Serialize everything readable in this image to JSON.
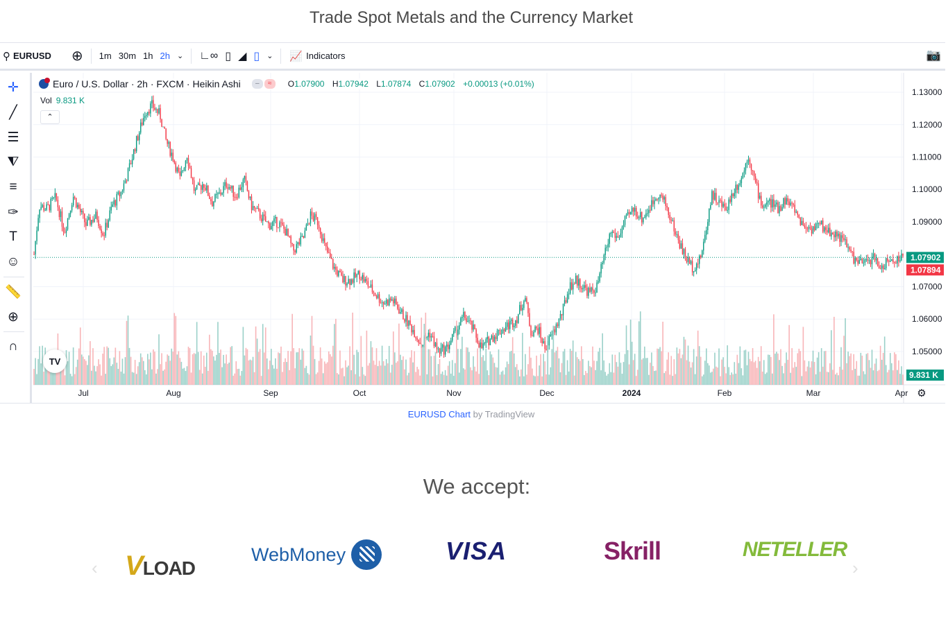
{
  "page": {
    "title": "Trade Spot Metals and the Currency Market"
  },
  "toolbar": {
    "symbol": "EURUSD",
    "intervals": [
      "1m",
      "30m",
      "1h",
      "2h"
    ],
    "active_interval": "2h",
    "indicators_label": "Indicators"
  },
  "legend": {
    "title": "Euro / U.S. Dollar · 2h · FXCM · Heikin Ashi",
    "o_key": "O",
    "o_val": "1.07900",
    "h_key": "H",
    "h_val": "1.07942",
    "l_key": "L",
    "l_val": "1.07874",
    "c_key": "C",
    "c_val": "1.07902",
    "change": "+0.00013 (+0.01%)",
    "vol_label": "Vol",
    "vol_val": "9.831 K"
  },
  "tv_logo_text": "TV",
  "attribution": {
    "link": "EURUSD Chart",
    "suffix": " by TradingView"
  },
  "accept": {
    "title": "We accept:"
  },
  "payment_logos": [
    "LOAD",
    "WebMoney",
    "VISA",
    "Skrill",
    "NETELLER"
  ],
  "colors": {
    "up": "#089981",
    "down": "#f23645",
    "accent": "#2962ff",
    "vol_up": "#89c9bf",
    "vol_down": "#f7a8ab"
  },
  "chart_data": {
    "type": "candlestick",
    "y_ticks": [
      "1.13000",
      "1.12000",
      "1.11000",
      "1.10000",
      "1.09000",
      "1.07000",
      "1.06000",
      "1.05000"
    ],
    "ylim": [
      1.044,
      1.133
    ],
    "x_ticks": [
      "Jul",
      "Aug",
      "Sep",
      "Oct",
      "Nov",
      "Dec",
      "2024",
      "Feb",
      "Mar",
      "Apr"
    ],
    "last_price": "1.07902",
    "prev_price": "1.07894",
    "volume_label": "9.831 K",
    "price_path": [
      [
        0.0,
        1.08
      ],
      [
        0.006,
        1.095
      ],
      [
        0.015,
        1.094
      ],
      [
        0.025,
        1.0975
      ],
      [
        0.035,
        1.087
      ],
      [
        0.045,
        1.098
      ],
      [
        0.06,
        1.089
      ],
      [
        0.072,
        1.092
      ],
      [
        0.08,
        1.086
      ],
      [
        0.09,
        1.095
      ],
      [
        0.1,
        1.099
      ],
      [
        0.108,
        1.105
      ],
      [
        0.118,
        1.115
      ],
      [
        0.128,
        1.124
      ],
      [
        0.136,
        1.126
      ],
      [
        0.145,
        1.123
      ],
      [
        0.152,
        1.115
      ],
      [
        0.16,
        1.11
      ],
      [
        0.168,
        1.103
      ],
      [
        0.176,
        1.111
      ],
      [
        0.185,
        1.099
      ],
      [
        0.195,
        1.102
      ],
      [
        0.205,
        1.096
      ],
      [
        0.215,
        1.099
      ],
      [
        0.222,
        1.102
      ],
      [
        0.232,
        1.098
      ],
      [
        0.242,
        1.103
      ],
      [
        0.25,
        1.095
      ],
      [
        0.26,
        1.092
      ],
      [
        0.27,
        1.089
      ],
      [
        0.28,
        1.09
      ],
      [
        0.29,
        1.087
      ],
      [
        0.298,
        1.081
      ],
      [
        0.31,
        1.085
      ],
      [
        0.318,
        1.092
      ],
      [
        0.327,
        1.09
      ],
      [
        0.335,
        1.082
      ],
      [
        0.345,
        1.076
      ],
      [
        0.355,
        1.072
      ],
      [
        0.365,
        1.072
      ],
      [
        0.375,
        1.074
      ],
      [
        0.383,
        1.071
      ],
      [
        0.392,
        1.068
      ],
      [
        0.402,
        1.065
      ],
      [
        0.412,
        1.066
      ],
      [
        0.42,
        1.063
      ],
      [
        0.43,
        1.059
      ],
      [
        0.438,
        1.056
      ],
      [
        0.446,
        1.052
      ],
      [
        0.455,
        1.056
      ],
      [
        0.465,
        1.05
      ],
      [
        0.475,
        1.051
      ],
      [
        0.485,
        1.056
      ],
      [
        0.495,
        1.061
      ],
      [
        0.505,
        1.057
      ],
      [
        0.515,
        1.051
      ],
      [
        0.525,
        1.054
      ],
      [
        0.535,
        1.056
      ],
      [
        0.545,
        1.058
      ],
      [
        0.555,
        1.06
      ],
      [
        0.565,
        1.067
      ],
      [
        0.572,
        1.056
      ],
      [
        0.58,
        1.057
      ],
      [
        0.588,
        1.051
      ],
      [
        0.598,
        1.056
      ],
      [
        0.608,
        1.062
      ],
      [
        0.616,
        1.07
      ],
      [
        0.624,
        1.072
      ],
      [
        0.632,
        1.07
      ],
      [
        0.64,
        1.068
      ],
      [
        0.648,
        1.07
      ],
      [
        0.656,
        1.079
      ],
      [
        0.664,
        1.087
      ],
      [
        0.672,
        1.085
      ],
      [
        0.68,
        1.09
      ],
      [
        0.69,
        1.094
      ],
      [
        0.7,
        1.091
      ],
      [
        0.71,
        1.095
      ],
      [
        0.718,
        1.099
      ],
      [
        0.726,
        1.096
      ],
      [
        0.734,
        1.09
      ],
      [
        0.742,
        1.084
      ],
      [
        0.75,
        1.079
      ],
      [
        0.758,
        1.076
      ],
      [
        0.766,
        1.078
      ],
      [
        0.772,
        1.085
      ],
      [
        0.78,
        1.099
      ],
      [
        0.788,
        1.096
      ],
      [
        0.796,
        1.094
      ],
      [
        0.806,
        1.1
      ],
      [
        0.815,
        1.104
      ],
      [
        0.822,
        1.111
      ],
      [
        0.83,
        1.102
      ],
      [
        0.838,
        1.095
      ],
      [
        0.848,
        1.096
      ],
      [
        0.856,
        1.094
      ],
      [
        0.865,
        1.097
      ],
      [
        0.875,
        1.094
      ],
      [
        0.885,
        1.089
      ],
      [
        0.895,
        1.088
      ],
      [
        0.905,
        1.089
      ],
      [
        0.915,
        1.087
      ],
      [
        0.925,
        1.086
      ],
      [
        0.935,
        1.083
      ],
      [
        0.945,
        1.078
      ],
      [
        0.955,
        1.077
      ],
      [
        0.965,
        1.079
      ],
      [
        0.975,
        1.076
      ],
      [
        0.985,
        1.078
      ],
      [
        1.0,
        1.079
      ]
    ],
    "continuation_path": [
      [
        0.0,
        1.079
      ],
      [
        0.04,
        1.075
      ],
      [
        0.08,
        1.072
      ],
      [
        0.12,
        1.077
      ],
      [
        0.16,
        1.08
      ],
      [
        0.2,
        1.083
      ],
      [
        0.26,
        1.085
      ],
      [
        0.32,
        1.084
      ],
      [
        0.38,
        1.087
      ],
      [
        0.44,
        1.091
      ],
      [
        0.5,
        1.096
      ],
      [
        0.56,
        1.094
      ],
      [
        0.62,
        1.092
      ],
      [
        0.66,
        1.088
      ],
      [
        0.7,
        1.093
      ],
      [
        0.76,
        1.086
      ],
      [
        0.82,
        1.083
      ],
      [
        0.88,
        1.082
      ],
      [
        0.94,
        1.08
      ],
      [
        1.0,
        1.079
      ]
    ]
  }
}
